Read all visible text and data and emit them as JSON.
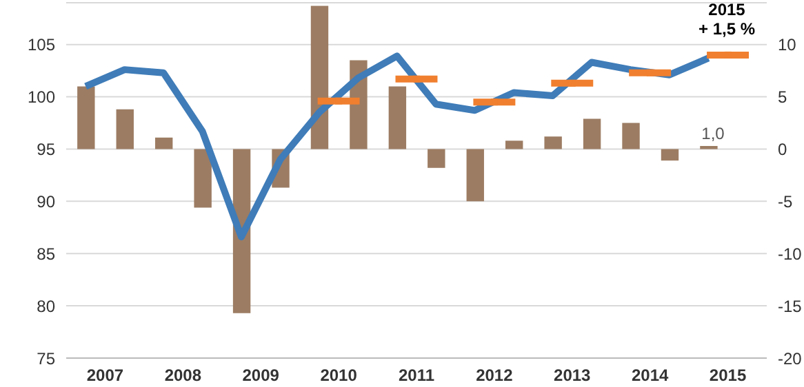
{
  "chart_data": {
    "type": "bar",
    "x": [
      2007.25,
      2007.75,
      2008.25,
      2008.75,
      2009.25,
      2009.75,
      2010.25,
      2010.75,
      2011.25,
      2011.75,
      2012.25,
      2012.75,
      2013.25,
      2013.75,
      2014.25,
      2014.75,
      2015.25
    ],
    "series": [
      {
        "axis": "y2",
        "color": "#9c7c63",
        "values": [
          6.0,
          3.8,
          1.1,
          -5.6,
          -15.7,
          -3.7,
          13.7,
          8.5,
          6.0,
          -1.8,
          -5.0,
          0.8,
          1.2,
          2.9,
          2.5,
          -1.1,
          0.3
        ]
      },
      {
        "type": "line",
        "color": "#3f7cb8",
        "values": [
          101.0,
          102.6,
          102.3,
          96.7,
          86.6,
          94.0,
          98.5,
          101.8,
          103.9,
          99.3,
          98.7,
          100.4,
          100.1,
          103.3,
          102.6,
          102.1,
          103.7
        ]
      },
      {
        "type": "scatter",
        "marker": "square",
        "color": "#f07f2f",
        "x": [
          2010.5,
          2011.5,
          2012.5,
          2013.5,
          2014.5,
          2015.5
        ],
        "values": [
          99.6,
          101.7,
          99.5,
          101.3,
          102.3,
          104.0
        ],
        "xerrors": [
          0.27,
          0.27,
          0.27,
          0.27,
          0.27,
          0.27
        ]
      }
    ],
    "xlim": [
      2007,
      2016
    ],
    "xticks": [
      {
        "value": 2007.5,
        "label": "2007"
      },
      {
        "value": 2008.5,
        "label": "2008"
      },
      {
        "value": 2009.5,
        "label": "2009"
      },
      {
        "value": 2010.5,
        "label": "2010"
      },
      {
        "value": 2011.5,
        "label": "2011"
      },
      {
        "value": 2012.5,
        "label": "2012"
      },
      {
        "value": 2013.5,
        "label": "2013"
      },
      {
        "value": 2014.5,
        "label": "2014"
      },
      {
        "value": 2015.5,
        "label": "2015"
      }
    ],
    "ylim": [
      75,
      109
    ],
    "yticks": [
      75,
      80,
      85,
      90,
      95,
      100,
      105
    ],
    "y2lim": [
      -20,
      14
    ],
    "y2ticks": [
      -20,
      -15,
      -10,
      -5,
      0,
      5,
      10
    ],
    "grid": "y",
    "annotations": [
      "2015\n+ 1,5 %",
      "1,0"
    ]
  }
}
